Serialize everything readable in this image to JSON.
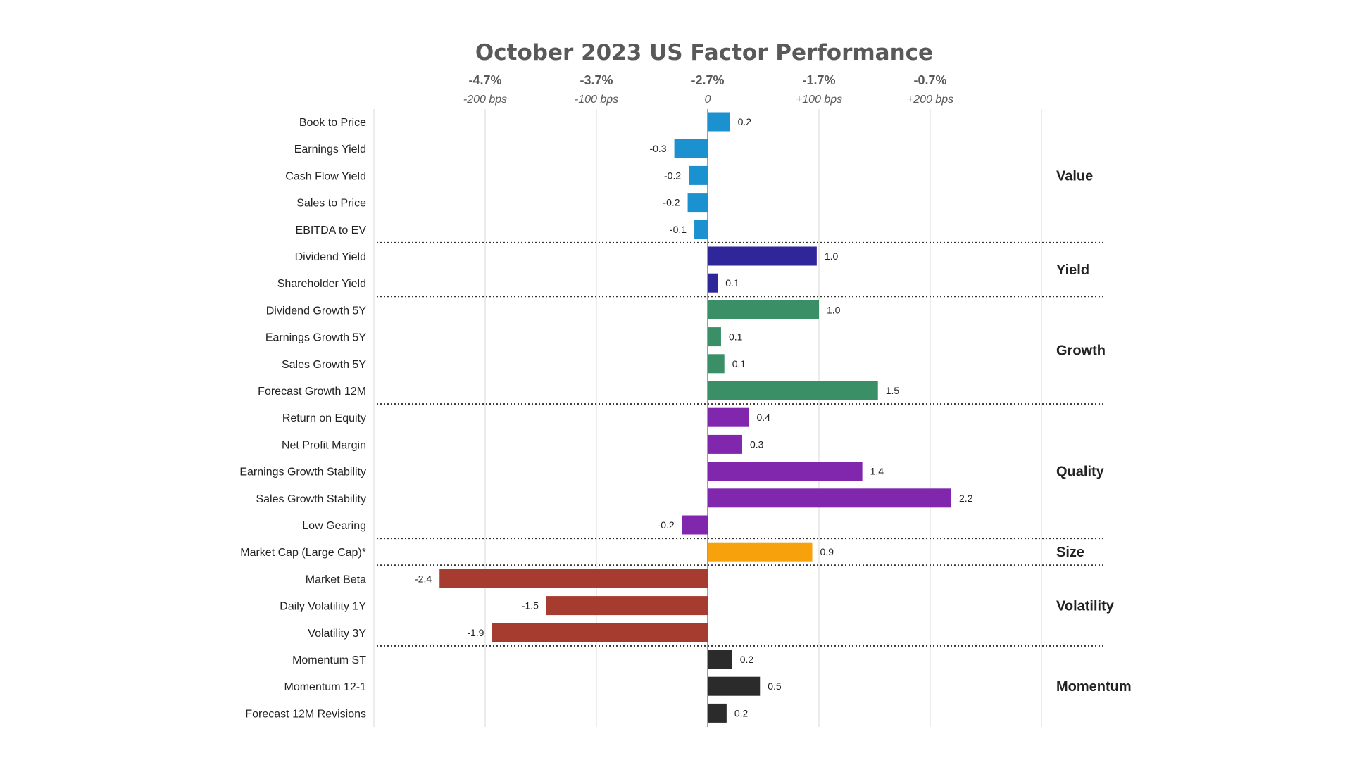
{
  "chart_data": {
    "type": "bar",
    "orientation": "horizontal",
    "title": "October 2023 US Factor Performance",
    "x_ticks_top": [
      "-4.7%",
      "-3.7%",
      "-2.7%",
      "-1.7%",
      "-0.7%"
    ],
    "x_ticks_bottom": [
      "-200 bps",
      "-100 bps",
      "0",
      "+100 bps",
      "+200 bps"
    ],
    "x_tick_values": [
      -2,
      -1,
      0,
      1,
      2
    ],
    "xlim": [
      -3,
      3
    ],
    "grid": true,
    "groups": [
      {
        "name": "Value",
        "color": "#1b92cf",
        "items": [
          {
            "label": "Book to Price",
            "value": 0.2,
            "value_label": "0.2"
          },
          {
            "label": "Earnings Yield",
            "value": -0.3,
            "value_label": "-0.3"
          },
          {
            "label": "Cash Flow Yield",
            "value": -0.17,
            "value_label": "-0.2"
          },
          {
            "label": "Sales to Price",
            "value": -0.18,
            "value_label": "-0.2"
          },
          {
            "label": "EBITDA to EV",
            "value": -0.12,
            "value_label": "-0.1"
          }
        ]
      },
      {
        "name": "Yield",
        "color": "#2e2699",
        "items": [
          {
            "label": "Dividend Yield",
            "value": 0.98,
            "value_label": "1.0"
          },
          {
            "label": "Shareholder Yield",
            "value": 0.09,
            "value_label": "0.1"
          }
        ]
      },
      {
        "name": "Growth",
        "color": "#3a8f67",
        "items": [
          {
            "label": "Dividend Growth 5Y",
            "value": 1.0,
            "value_label": "1.0"
          },
          {
            "label": "Earnings Growth 5Y",
            "value": 0.12,
            "value_label": "0.1"
          },
          {
            "label": "Sales Growth 5Y",
            "value": 0.15,
            "value_label": "0.1"
          },
          {
            "label": "Forecast Growth 12M",
            "value": 1.53,
            "value_label": "1.5"
          }
        ]
      },
      {
        "name": "Quality",
        "color": "#8027ad",
        "items": [
          {
            "label": "Return on Equity",
            "value": 0.37,
            "value_label": "0.4"
          },
          {
            "label": "Net Profit Margin",
            "value": 0.31,
            "value_label": "0.3"
          },
          {
            "label": "Earnings Growth Stability",
            "value": 1.39,
            "value_label": "1.4"
          },
          {
            "label": "Sales Growth Stability",
            "value": 2.19,
            "value_label": "2.2"
          },
          {
            "label": "Low Gearing",
            "value": -0.23,
            "value_label": "-0.2"
          }
        ]
      },
      {
        "name": "Size",
        "color": "#f7a20d",
        "items": [
          {
            "label": "Market Cap (Large Cap)*",
            "value": 0.94,
            "value_label": "0.9"
          }
        ]
      },
      {
        "name": "Volatility",
        "color": "#a63b2f",
        "items": [
          {
            "label": "Market Beta",
            "value": -2.41,
            "value_label": "-2.4"
          },
          {
            "label": "Daily Volatility 1Y",
            "value": -1.45,
            "value_label": "-1.5"
          },
          {
            "label": "Volatility 3Y",
            "value": -1.94,
            "value_label": "-1.9"
          }
        ]
      },
      {
        "name": "Momentum",
        "color": "#2b2b2b",
        "items": [
          {
            "label": "Momentum ST",
            "value": 0.22,
            "value_label": "0.2"
          },
          {
            "label": "Momentum 12-1",
            "value": 0.47,
            "value_label": "0.5"
          },
          {
            "label": "Forecast 12M Revisions",
            "value": 0.17,
            "value_label": "0.2"
          }
        ]
      }
    ]
  }
}
